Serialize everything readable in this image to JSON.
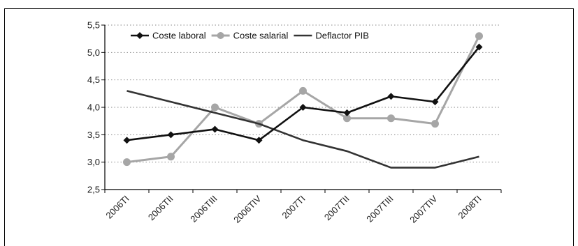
{
  "chart_data": {
    "type": "line",
    "categories": [
      "2006TI",
      "2006TII",
      "2006TIII",
      "2006TIV",
      "2007TI",
      "2007TII",
      "2007TIII",
      "2007TIV",
      "2008TI"
    ],
    "series": [
      {
        "name": "Coste laboral",
        "values": [
          3.4,
          3.5,
          3.6,
          3.4,
          4.0,
          3.9,
          4.2,
          4.1,
          5.1
        ],
        "color": "#111111",
        "marker": "diamond"
      },
      {
        "name": "Coste salarial",
        "values": [
          3.0,
          3.1,
          4.0,
          3.7,
          4.3,
          3.8,
          3.8,
          3.7,
          5.3
        ],
        "color": "#a6a6a6",
        "marker": "circle"
      },
      {
        "name": "Deflactor PIB",
        "values": [
          4.3,
          4.1,
          3.9,
          3.7,
          3.4,
          3.2,
          2.9,
          2.9,
          3.1
        ],
        "color": "#333333",
        "marker": "none"
      }
    ],
    "yticks": [
      "2,5",
      "3,0",
      "3,5",
      "4,0",
      "4,5",
      "5,0",
      "5,5"
    ],
    "ylim": [
      2.5,
      5.5
    ],
    "grid": "horizontal dotted",
    "legend_position": "top"
  }
}
